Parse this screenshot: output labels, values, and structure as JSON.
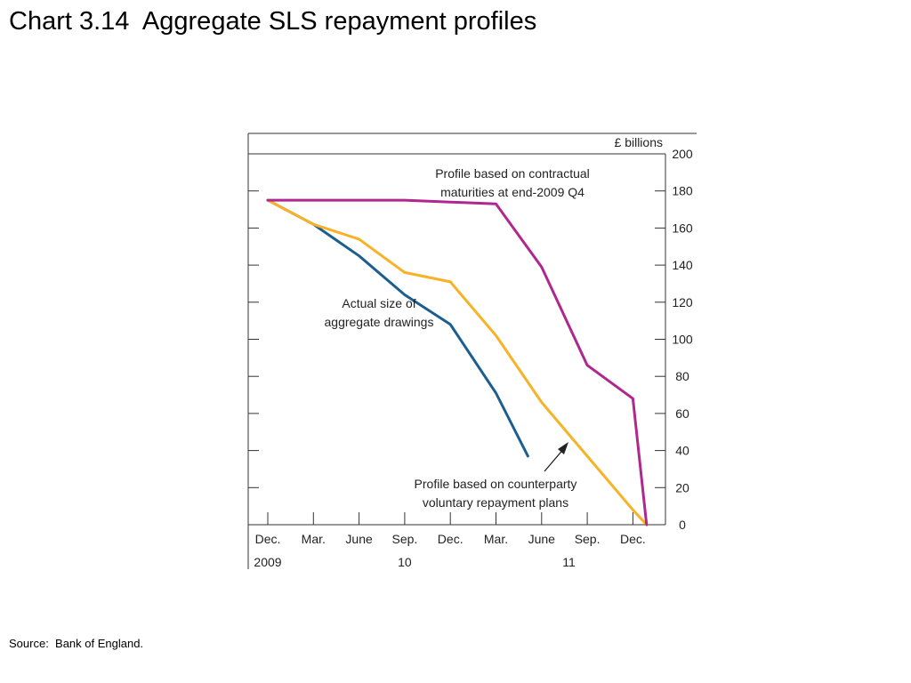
{
  "slide": {
    "title": "Chart 3.14  Aggregate SLS repayment profiles",
    "source": "Source:  Bank of England."
  },
  "chart_data": {
    "type": "line",
    "unit_label": "£ billions",
    "x": [
      "Dec.",
      "Mar.",
      "June",
      "Sep.",
      "Dec.",
      "Mar.",
      "June",
      "Sep.",
      "Dec.",
      ""
    ],
    "year_labels": [
      {
        "index": 0,
        "label": "2009"
      },
      {
        "index": 3,
        "label": "10"
      },
      {
        "index": 6.6,
        "label": "11"
      }
    ],
    "ylim": [
      0,
      200
    ],
    "y_ticks": [
      0,
      20,
      40,
      60,
      80,
      100,
      120,
      140,
      160,
      180,
      200
    ],
    "grid": false,
    "series": [
      {
        "key": "actual",
        "color": "#1c5f8f",
        "points": [
          [
            0,
            175
          ],
          [
            1,
            162
          ],
          [
            2,
            145
          ],
          [
            3,
            124
          ],
          [
            4,
            108
          ],
          [
            5,
            71
          ],
          [
            5.7,
            37
          ]
        ]
      },
      {
        "key": "voluntary",
        "color": "#f7b227",
        "points": [
          [
            0,
            175
          ],
          [
            1,
            162
          ],
          [
            2,
            154
          ],
          [
            3,
            136
          ],
          [
            4,
            131
          ],
          [
            5,
            102
          ],
          [
            6,
            66
          ],
          [
            7,
            37
          ],
          [
            8,
            8
          ],
          [
            8.3,
            0
          ]
        ]
      },
      {
        "key": "contractual",
        "color": "#b0278e",
        "points": [
          [
            0,
            175
          ],
          [
            1,
            175
          ],
          [
            2,
            175
          ],
          [
            3,
            175
          ],
          [
            4,
            174
          ],
          [
            5,
            173
          ],
          [
            6,
            139
          ],
          [
            7,
            86
          ],
          [
            8,
            68
          ],
          [
            8.3,
            0
          ]
        ]
      }
    ],
    "annotations": [
      {
        "key": "contractual",
        "lines": [
          "Profile based on contractual",
          "maturities at end-2009 Q4"
        ]
      },
      {
        "key": "actual",
        "lines": [
          "Actual size of",
          "aggregate drawings"
        ]
      },
      {
        "key": "voluntary",
        "lines": [
          "Profile based on counterparty",
          "voluntary repayment plans"
        ]
      }
    ]
  }
}
